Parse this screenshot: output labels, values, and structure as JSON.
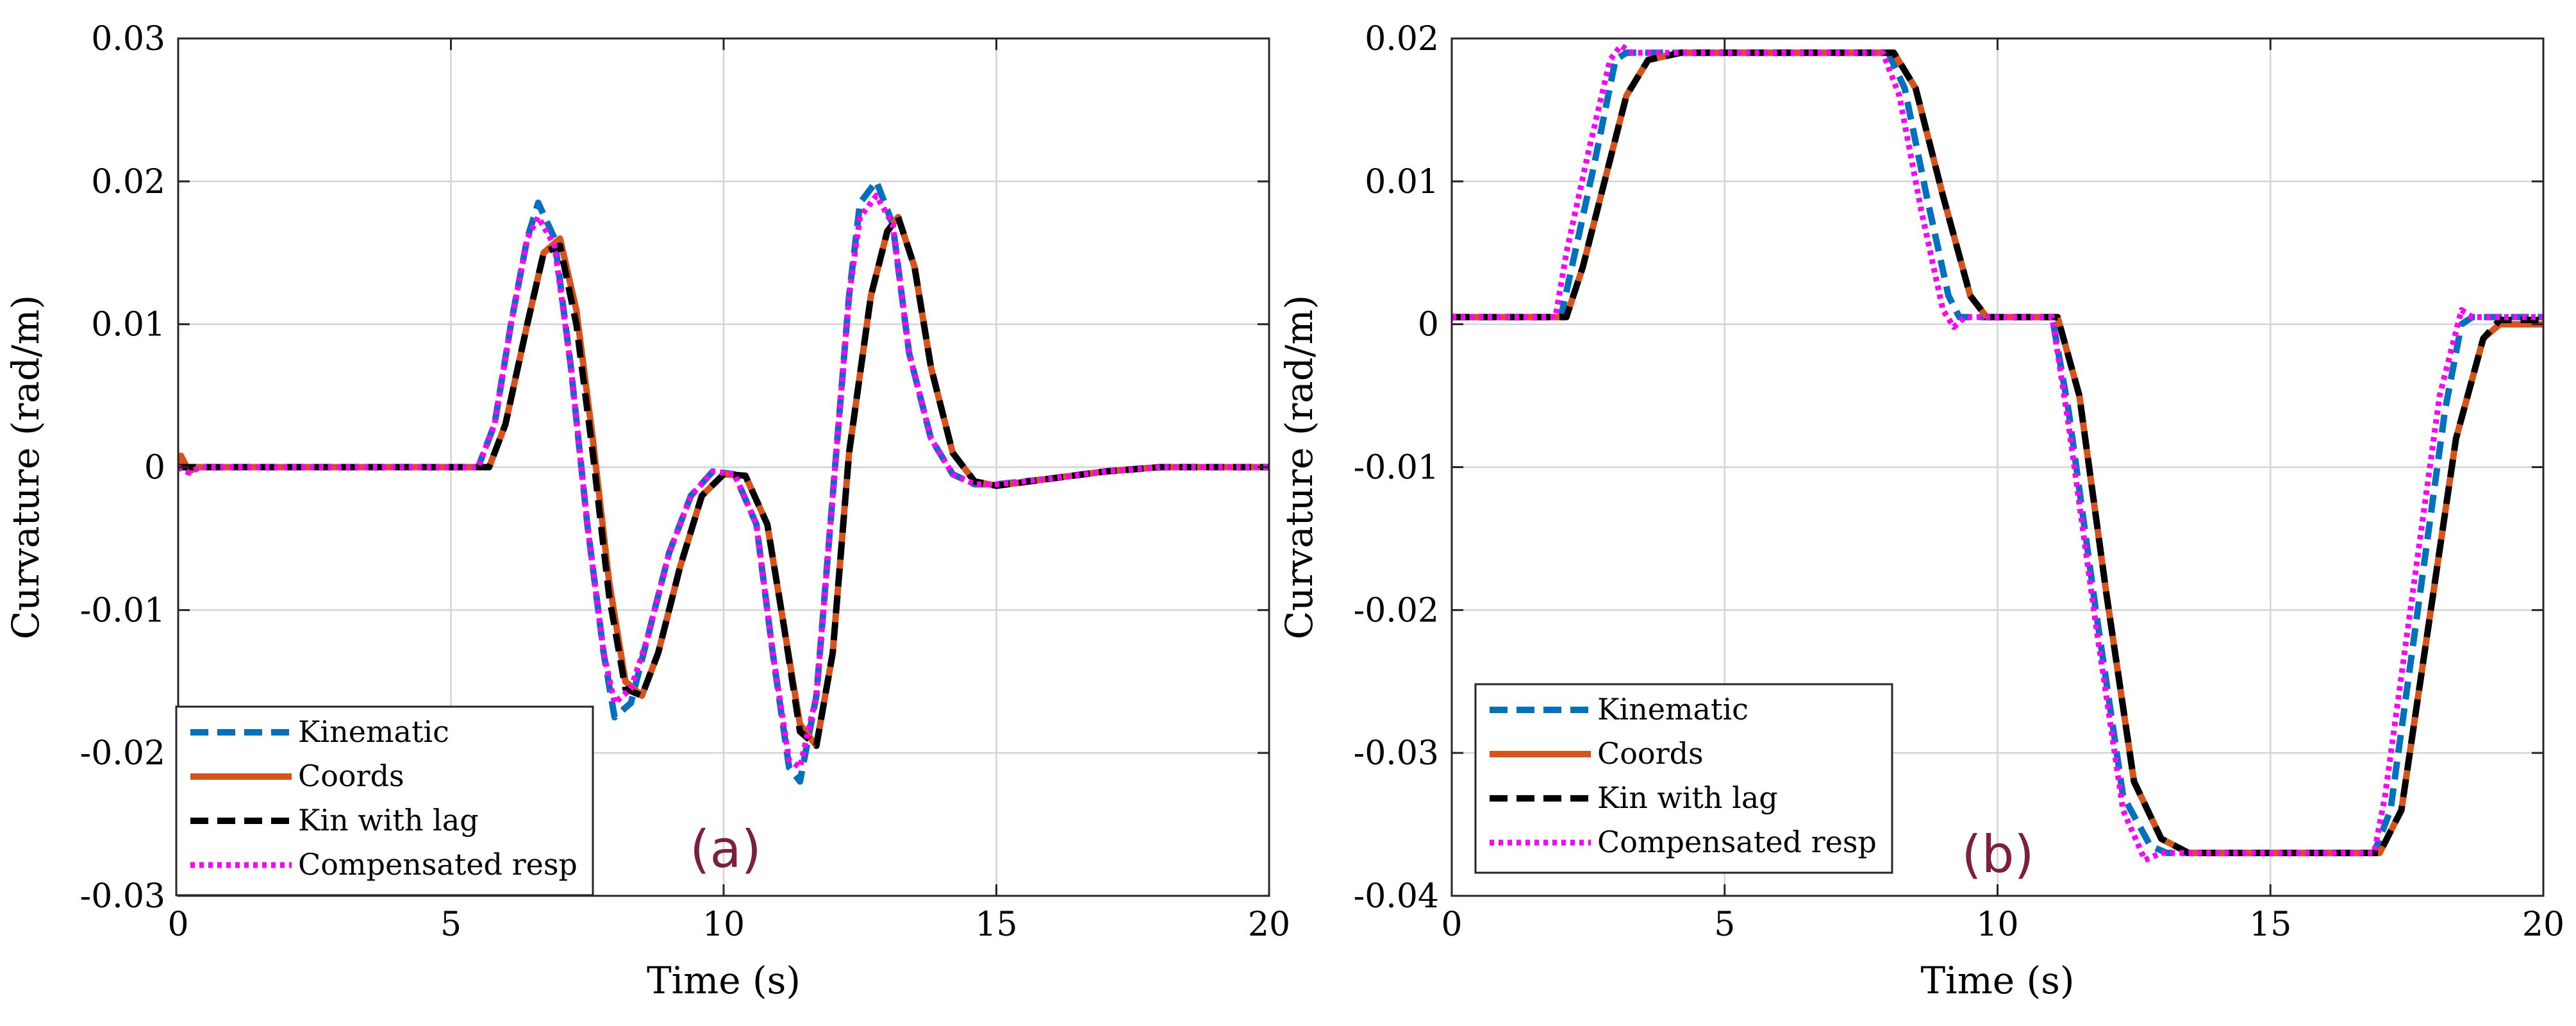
{
  "figure": {
    "panels": [
      "a",
      "b"
    ]
  },
  "chart_data": [
    {
      "type": "line",
      "panel_label": "(a)",
      "xlabel": "Time (s)",
      "ylabel": "Curvature (rad/m)",
      "xlim": [
        0,
        20
      ],
      "ylim": [
        -0.03,
        0.03
      ],
      "xticks": [
        0,
        5,
        10,
        15,
        20
      ],
      "yticks": [
        -0.03,
        -0.02,
        -0.01,
        0,
        0.01,
        0.02,
        0.03
      ],
      "xtick_labels": [
        "0",
        "5",
        "10",
        "15",
        "20"
      ],
      "ytick_labels": [
        "-0.03",
        "-0.02",
        "-0.01",
        "0",
        "0.01",
        "0.02",
        "0.03"
      ],
      "grid": true,
      "legend_position": "bottom-left",
      "series": [
        {
          "name": "Kinematic",
          "color": "#0072BD",
          "dash": "dashed",
          "x": [
            0,
            5.5,
            5.8,
            6.1,
            6.4,
            6.6,
            6.9,
            7.2,
            7.5,
            7.8,
            8.0,
            8.3,
            8.6,
            9.0,
            9.4,
            9.8,
            10.2,
            10.6,
            10.9,
            11.2,
            11.4,
            11.7,
            12.0,
            12.3,
            12.5,
            12.8,
            13.1,
            13.4,
            13.8,
            14.2,
            14.6,
            15.0,
            16.0,
            17.0,
            18.0,
            20.0
          ],
          "values": [
            0,
            0,
            0.003,
            0.01,
            0.016,
            0.0185,
            0.016,
            0.007,
            -0.004,
            -0.013,
            -0.0175,
            -0.0165,
            -0.012,
            -0.006,
            -0.002,
            -0.0003,
            -0.0005,
            -0.004,
            -0.013,
            -0.021,
            -0.022,
            -0.016,
            -0.002,
            0.012,
            0.0185,
            0.02,
            0.017,
            0.008,
            0.002,
            -0.0005,
            -0.0012,
            -0.0012,
            -0.0008,
            -0.0003,
            0,
            0
          ]
        },
        {
          "name": "Coords",
          "color": "#D95319",
          "dash": "solid",
          "x": [
            0,
            0.05,
            0.2,
            0.35,
            5.7,
            6.0,
            6.4,
            6.7,
            7.0,
            7.3,
            7.6,
            7.9,
            8.2,
            8.5,
            8.8,
            9.2,
            9.6,
            10.0,
            10.4,
            10.8,
            11.1,
            11.4,
            11.7,
            12.0,
            12.3,
            12.7,
            13.0,
            13.2,
            13.5,
            13.8,
            14.2,
            14.6,
            15.0,
            16.0,
            17.0,
            18.0,
            20.0
          ],
          "values": [
            0,
            0.0008,
            -0.0003,
            0,
            0,
            0.003,
            0.01,
            0.015,
            0.016,
            0.011,
            0.002,
            -0.008,
            -0.015,
            -0.016,
            -0.013,
            -0.007,
            -0.002,
            -0.0005,
            -0.0006,
            -0.004,
            -0.011,
            -0.018,
            -0.0195,
            -0.013,
            0.001,
            0.012,
            0.0165,
            0.0175,
            0.014,
            0.007,
            0.001,
            -0.001,
            -0.0013,
            -0.0008,
            -0.0003,
            0,
            0
          ]
        },
        {
          "name": "Kin with lag",
          "color": "#000000",
          "dash": "dashed",
          "x": [
            0,
            5.7,
            6.0,
            6.4,
            6.7,
            7.0,
            7.3,
            7.6,
            7.9,
            8.2,
            8.5,
            8.8,
            9.2,
            9.6,
            10.0,
            10.4,
            10.8,
            11.1,
            11.4,
            11.7,
            12.0,
            12.3,
            12.7,
            13.0,
            13.2,
            13.5,
            13.8,
            14.2,
            14.6,
            15.0,
            16.0,
            17.0,
            18.0,
            20.0
          ],
          "values": [
            0,
            0,
            0.003,
            0.01,
            0.015,
            0.0155,
            0.01,
            0.001,
            -0.009,
            -0.0155,
            -0.016,
            -0.013,
            -0.007,
            -0.002,
            -0.0005,
            -0.0006,
            -0.004,
            -0.011,
            -0.0185,
            -0.0195,
            -0.013,
            0.001,
            0.012,
            0.0165,
            0.0175,
            0.014,
            0.007,
            0.001,
            -0.001,
            -0.0013,
            -0.0008,
            -0.0003,
            0,
            0
          ]
        },
        {
          "name": "Compensated resp",
          "color": "#FF00FF",
          "dash": "dotted",
          "x": [
            0,
            0.2,
            0.4,
            5.5,
            5.8,
            6.1,
            6.4,
            6.6,
            6.9,
            7.2,
            7.5,
            7.8,
            8.0,
            8.3,
            8.6,
            9.0,
            9.4,
            9.8,
            10.2,
            10.6,
            10.9,
            11.2,
            11.4,
            11.7,
            12.0,
            12.3,
            12.5,
            12.8,
            13.1,
            13.4,
            13.8,
            14.2,
            14.6,
            15.0,
            16.0,
            17.0,
            18.0,
            20.0
          ],
          "values": [
            0,
            -0.0004,
            0,
            0,
            0.003,
            0.01,
            0.016,
            0.0175,
            0.0155,
            0.007,
            -0.004,
            -0.013,
            -0.0165,
            -0.0155,
            -0.012,
            -0.006,
            -0.002,
            -0.0003,
            -0.0005,
            -0.004,
            -0.013,
            -0.0205,
            -0.021,
            -0.016,
            -0.002,
            0.012,
            0.0175,
            0.019,
            0.017,
            0.008,
            0.002,
            -0.0005,
            -0.0012,
            -0.0012,
            -0.0008,
            -0.0003,
            0,
            0
          ]
        }
      ]
    },
    {
      "type": "line",
      "panel_label": "(b)",
      "xlabel": "Time (s)",
      "ylabel": "Curvature (rad/m)",
      "xlim": [
        0,
        20
      ],
      "ylim": [
        -0.04,
        0.02
      ],
      "xticks": [
        0,
        5,
        10,
        15,
        20
      ],
      "yticks": [
        -0.04,
        -0.03,
        -0.02,
        -0.01,
        0,
        0.01,
        0.02
      ],
      "xtick_labels": [
        "0",
        "5",
        "10",
        "15",
        "20"
      ],
      "ytick_labels": [
        "-0.04",
        "-0.03",
        "-0.02",
        "-0.01",
        "0",
        "0.01",
        "0.02"
      ],
      "grid": true,
      "legend_position": "bottom-left",
      "series": [
        {
          "name": "Kinematic",
          "color": "#0072BD",
          "dash": "dashed",
          "x": [
            0,
            2.0,
            2.2,
            2.6,
            3.0,
            3.2,
            4.0,
            8.0,
            8.3,
            8.7,
            9.1,
            9.3,
            11.0,
            11.3,
            11.8,
            12.3,
            12.8,
            13.1,
            16.9,
            17.2,
            17.7,
            18.2,
            18.5,
            18.7,
            20.0
          ],
          "values": [
            0.0005,
            0.0005,
            0.004,
            0.011,
            0.0185,
            0.019,
            0.019,
            0.019,
            0.0165,
            0.009,
            0.002,
            0.0005,
            0.0005,
            -0.006,
            -0.02,
            -0.033,
            -0.0365,
            -0.037,
            -0.037,
            -0.034,
            -0.02,
            -0.006,
            0,
            0.0005,
            0.0005
          ]
        },
        {
          "name": "Coords",
          "color": "#D95319",
          "dash": "solid",
          "x": [
            0,
            2.1,
            2.4,
            2.8,
            3.2,
            3.6,
            4.2,
            8.1,
            8.5,
            9.0,
            9.5,
            9.8,
            11.1,
            11.5,
            12.0,
            12.5,
            13.0,
            13.5,
            17.0,
            17.4,
            17.9,
            18.4,
            18.9,
            19.2,
            20.0
          ],
          "values": [
            0.0005,
            0.0005,
            0.004,
            0.01,
            0.016,
            0.0185,
            0.019,
            0.019,
            0.0165,
            0.009,
            0.002,
            0.0005,
            0.0005,
            -0.005,
            -0.019,
            -0.032,
            -0.036,
            -0.037,
            -0.037,
            -0.034,
            -0.021,
            -0.008,
            -0.001,
            0,
            0
          ]
        },
        {
          "name": "Kin with lag",
          "color": "#000000",
          "dash": "dashed",
          "x": [
            0,
            2.1,
            2.4,
            2.8,
            3.2,
            3.6,
            4.2,
            8.1,
            8.5,
            9.0,
            9.5,
            9.8,
            11.1,
            11.5,
            12.0,
            12.5,
            13.0,
            13.5,
            17.0,
            17.4,
            17.9,
            18.4,
            18.9,
            19.2,
            20.0
          ],
          "values": [
            0.0005,
            0.0005,
            0.004,
            0.01,
            0.016,
            0.0185,
            0.019,
            0.019,
            0.0165,
            0.009,
            0.002,
            0.0005,
            0.0005,
            -0.005,
            -0.019,
            -0.032,
            -0.036,
            -0.037,
            -0.037,
            -0.034,
            -0.021,
            -0.008,
            -0.001,
            0.0003,
            0.0003
          ]
        },
        {
          "name": "Compensated resp",
          "color": "#FF00FF",
          "dash": "dotted",
          "x": [
            0,
            1.9,
            2.1,
            2.5,
            2.9,
            3.1,
            3.3,
            4.0,
            7.9,
            8.2,
            8.6,
            9.0,
            9.2,
            9.4,
            11.0,
            11.3,
            11.8,
            12.3,
            12.7,
            13.0,
            16.9,
            17.1,
            17.6,
            18.1,
            18.5,
            18.7,
            20.0
          ],
          "values": [
            0.0005,
            0.0005,
            0.005,
            0.012,
            0.0185,
            0.0195,
            0.019,
            0.019,
            0.019,
            0.016,
            0.008,
            0.001,
            -0.0002,
            0.0005,
            0.0005,
            -0.007,
            -0.021,
            -0.034,
            -0.0375,
            -0.037,
            -0.037,
            -0.033,
            -0.019,
            -0.005,
            0.001,
            0.0005,
            0.0005
          ]
        }
      ]
    }
  ]
}
